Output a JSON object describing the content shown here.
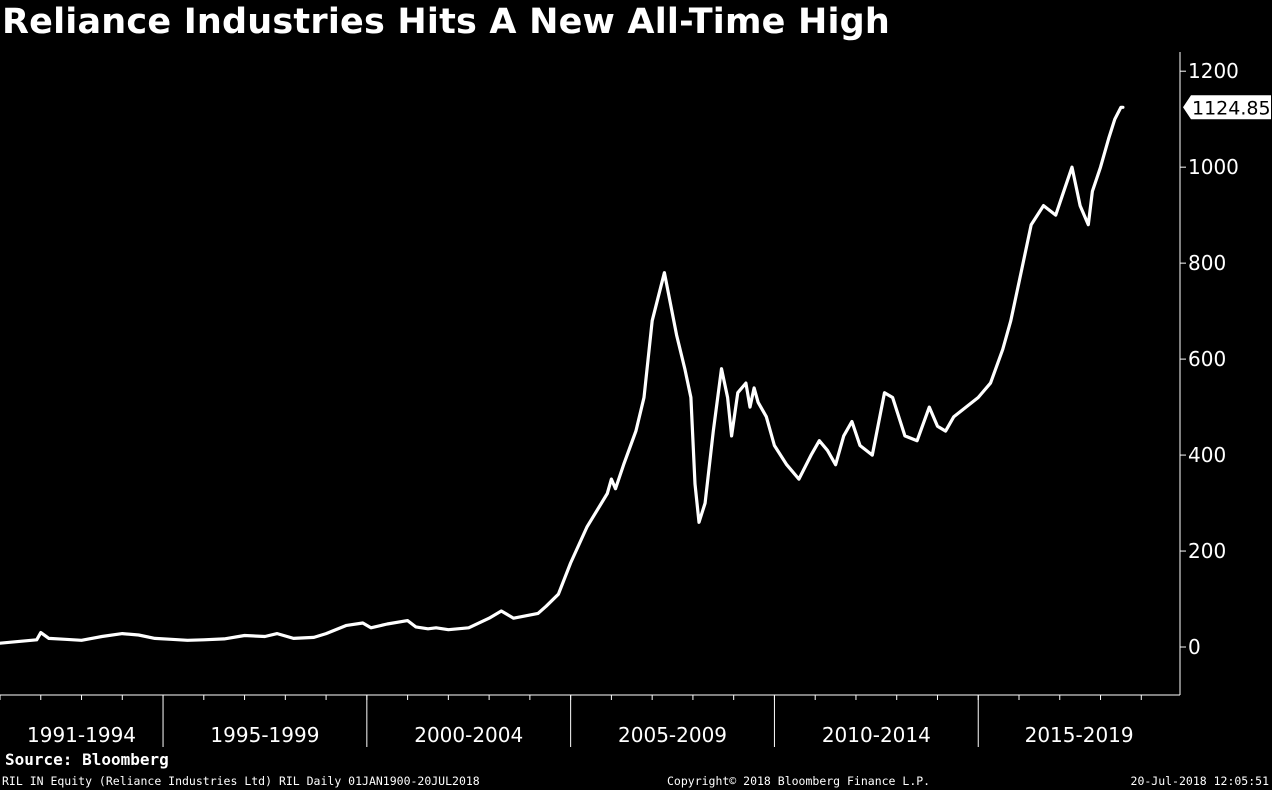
{
  "header": {
    "title": "Reliance Industries Hits A New All-Time High"
  },
  "footer": {
    "source": "Source: Bloomberg",
    "security": "RIL IN Equity (Reliance Industries Ltd) RIL  Daily 01JAN1900-20JUL2018",
    "copyright": "Copyright© 2018 Bloomberg Finance L.P.",
    "timestamp": "20-Jul-2018 12:05:51"
  },
  "colors": {
    "background": "#000000",
    "line": "#ffffff",
    "axis": "#ffffff"
  },
  "chart_data": {
    "type": "line",
    "title": "Reliance Industries Hits A New All-Time High",
    "xlabel": "",
    "ylabel": "",
    "ylim": [
      -100,
      1240
    ],
    "xlim": [
      1991.0,
      2019.95
    ],
    "yticks": [
      0,
      200,
      400,
      600,
      800,
      1000,
      1200
    ],
    "y_axis_side": "right",
    "grid": false,
    "legend": "none",
    "last_value": 1124.85,
    "last_value_label": "1124.85",
    "x_groups": [
      {
        "label": "1991-1994",
        "start": 1991,
        "end": 1995
      },
      {
        "label": "1995-1999",
        "start": 1995,
        "end": 2000
      },
      {
        "label": "2000-2004",
        "start": 2000,
        "end": 2005
      },
      {
        "label": "2005-2009",
        "start": 2005,
        "end": 2010
      },
      {
        "label": "2010-2014",
        "start": 2010,
        "end": 2015
      },
      {
        "label": "2015-2019",
        "start": 2015,
        "end": 2020
      }
    ],
    "series": [
      {
        "x": [
          1991.0,
          1991.5,
          1991.9,
          1992.0,
          1992.2,
          1992.6,
          1993.0,
          1993.5,
          1994.0,
          1994.4,
          1994.8,
          1995.2,
          1995.6,
          1996.0,
          1996.5,
          1997.0,
          1997.5,
          1997.8,
          1998.2,
          1998.7,
          1999.0,
          1999.5,
          1999.9,
          2000.1,
          2000.5,
          2001.0,
          2001.2,
          2001.5,
          2001.7,
          2002.0,
          2002.5,
          2003.0,
          2003.3,
          2003.6,
          2003.9,
          2004.2,
          2004.4,
          2004.7,
          2005.0,
          2005.4,
          2005.9,
          2006.0,
          2006.1,
          2006.3,
          2006.6,
          2006.8,
          2007.0,
          2007.3,
          2007.6,
          2007.8,
          2007.95,
          2008.05,
          2008.15,
          2008.3,
          2008.5,
          2008.7,
          2008.85,
          2008.95,
          2009.1,
          2009.3,
          2009.4,
          2009.5,
          2009.6,
          2009.8,
          2010.0,
          2010.3,
          2010.6,
          2010.9,
          2011.1,
          2011.3,
          2011.5,
          2011.7,
          2011.9,
          2012.1,
          2012.4,
          2012.7,
          2012.9,
          2013.2,
          2013.5,
          2013.8,
          2014.0,
          2014.2,
          2014.4,
          2014.7,
          2015.0,
          2015.3,
          2015.6,
          2015.8,
          2016.0,
          2016.3,
          2016.6,
          2016.9,
          2017.1,
          2017.3,
          2017.5,
          2017.7,
          2017.8,
          2018.0,
          2018.2,
          2018.35,
          2018.5,
          2018.55
        ],
        "values": [
          8,
          12,
          15,
          30,
          18,
          16,
          14,
          22,
          28,
          25,
          18,
          16,
          14,
          15,
          17,
          24,
          22,
          28,
          18,
          20,
          28,
          45,
          50,
          40,
          48,
          55,
          42,
          38,
          40,
          36,
          40,
          60,
          75,
          60,
          65,
          70,
          85,
          110,
          175,
          250,
          320,
          350,
          330,
          380,
          450,
          520,
          680,
          780,
          650,
          580,
          520,
          340,
          260,
          300,
          450,
          580,
          520,
          440,
          530,
          550,
          500,
          540,
          510,
          480,
          420,
          380,
          350,
          400,
          430,
          410,
          380,
          440,
          470,
          420,
          400,
          530,
          520,
          440,
          430,
          500,
          460,
          450,
          480,
          500,
          520,
          550,
          620,
          680,
          760,
          880,
          920,
          900,
          950,
          1000,
          920,
          880,
          950,
          1000,
          1060,
          1100,
          1124.85,
          1124.85
        ]
      }
    ]
  }
}
